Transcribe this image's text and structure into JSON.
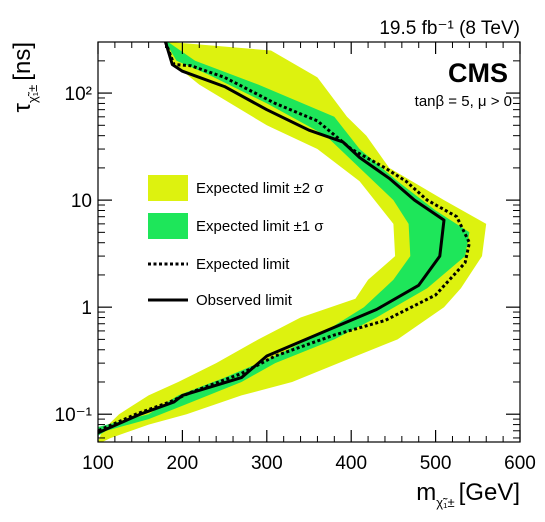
{
  "chart_data": {
    "type": "area",
    "lumi": "19.5 fb⁻¹ (8 TeV)",
    "experiment": "CMS",
    "annotation": "tanβ = 5, μ > 0",
    "xlabel": "m",
    "xlabel_sub": "χ̃₁±",
    "xlabel_unit": "[GeV]",
    "ylabel": "τ",
    "ylabel_sub": "χ̃₁±",
    "ylabel_unit": "[ns]",
    "xlim": [
      100,
      600
    ],
    "ylim": [
      0.055,
      300
    ],
    "yscale": "log",
    "x_ticks": [
      100,
      200,
      300,
      400,
      500,
      600
    ],
    "x_tick_labels": [
      "100",
      "200",
      "300",
      "400",
      "500",
      "600"
    ],
    "y_ticks": [
      0.1,
      1,
      10,
      100
    ],
    "y_tick_labels": [
      "10⁻¹",
      "1",
      "10",
      "10²"
    ],
    "legend_position": "center-left",
    "legend": [
      {
        "label": "Expected limit ±2 σ",
        "style": "band2"
      },
      {
        "label": "Expected limit ±1 σ",
        "style": "band1"
      },
      {
        "label": "Expected limit",
        "style": "dotted"
      },
      {
        "label": "Observed limit",
        "style": "solid"
      }
    ],
    "colors": {
      "band2": "#ddf20f",
      "band1": "#1ee65a",
      "line": "#000000"
    },
    "band2": {
      "x_right": [
        [
          300,
          185
        ],
        [
          250,
          305
        ],
        [
          140,
          360
        ],
        [
          60,
          395
        ],
        [
          40,
          418
        ],
        [
          20,
          445
        ],
        [
          10,
          510
        ],
        [
          6,
          560
        ],
        [
          3,
          555
        ],
        [
          1.5,
          530
        ],
        [
          1.0,
          510
        ],
        [
          0.5,
          455
        ],
        [
          0.3,
          385
        ],
        [
          0.2,
          330
        ],
        [
          0.15,
          270
        ],
        [
          0.1,
          205
        ],
        [
          0.08,
          160
        ],
        [
          0.06,
          115
        ],
        [
          0.055,
          105
        ]
      ],
      "x_left": [
        [
          300,
          180
        ],
        [
          200,
          185
        ],
        [
          120,
          220
        ],
        [
          50,
          300
        ],
        [
          30,
          360
        ],
        [
          15,
          410
        ],
        [
          6,
          450
        ],
        [
          3,
          452
        ],
        [
          1.8,
          420
        ],
        [
          1.2,
          405
        ],
        [
          0.8,
          340
        ],
        [
          0.5,
          290
        ],
        [
          0.3,
          240
        ],
        [
          0.2,
          195
        ],
        [
          0.15,
          160
        ],
        [
          0.1,
          125
        ],
        [
          0.07,
          105
        ],
        [
          0.055,
          100
        ]
      ]
    },
    "band1": {
      "x_right": [
        [
          300,
          183
        ],
        [
          200,
          215
        ],
        [
          120,
          290
        ],
        [
          60,
          380
        ],
        [
          30,
          410
        ],
        [
          15,
          455
        ],
        [
          8,
          500
        ],
        [
          5,
          540
        ],
        [
          3,
          535
        ],
        [
          1.5,
          490
        ],
        [
          0.8,
          430
        ],
        [
          0.5,
          380
        ],
        [
          0.3,
          310
        ],
        [
          0.2,
          270
        ],
        [
          0.12,
          200
        ],
        [
          0.09,
          160
        ],
        [
          0.07,
          110
        ],
        [
          0.063,
          100
        ]
      ],
      "x_left": [
        [
          300,
          180
        ],
        [
          200,
          193
        ],
        [
          150,
          230
        ],
        [
          80,
          300
        ],
        [
          40,
          370
        ],
        [
          20,
          410
        ],
        [
          10,
          450
        ],
        [
          6,
          468
        ],
        [
          3,
          470
        ],
        [
          1.8,
          450
        ],
        [
          1.0,
          415
        ],
        [
          0.6,
          370
        ],
        [
          0.35,
          310
        ],
        [
          0.22,
          250
        ],
        [
          0.15,
          195
        ],
        [
          0.1,
          160
        ],
        [
          0.076,
          100
        ]
      ]
    },
    "expected": {
      "x": [
        180,
        190,
        210,
        250,
        310,
        360,
        400,
        440,
        465,
        490,
        525,
        540,
        535,
        500,
        440,
        380,
        310,
        270,
        210,
        185,
        145,
        100
      ],
      "y": [
        300,
        185,
        180,
        140,
        80,
        55,
        30,
        20,
        15,
        10,
        7,
        4,
        2.6,
        1.3,
        0.75,
        0.55,
        0.35,
        0.24,
        0.16,
        0.13,
        0.1,
        0.07
      ]
    },
    "observed": {
      "x": [
        180,
        188,
        200,
        250,
        300,
        350,
        390,
        410,
        445,
        475,
        510,
        505,
        480,
        430,
        370,
        300,
        270,
        200,
        190,
        150,
        100
      ],
      "y": [
        300,
        185,
        160,
        115,
        70,
        45,
        35,
        25,
        16,
        10,
        6.5,
        3,
        1.6,
        0.95,
        0.6,
        0.35,
        0.22,
        0.15,
        0.13,
        0.1,
        0.067
      ]
    }
  }
}
